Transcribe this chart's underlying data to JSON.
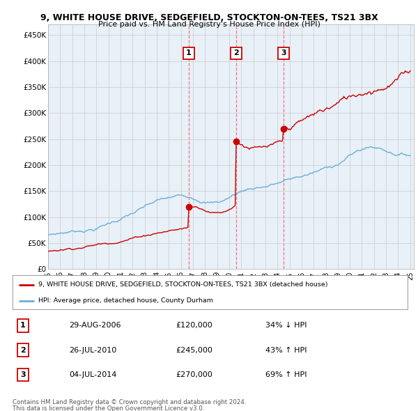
{
  "title1": "9, WHITE HOUSE DRIVE, SEDGEFIELD, STOCKTON-ON-TEES, TS21 3BX",
  "title2": "Price paid vs. HM Land Registry's House Price Index (HPI)",
  "ylabel_ticks": [
    "£0",
    "£50K",
    "£100K",
    "£150K",
    "£200K",
    "£250K",
    "£300K",
    "£350K",
    "£400K",
    "£450K"
  ],
  "ytick_values": [
    0,
    50000,
    100000,
    150000,
    200000,
    250000,
    300000,
    350000,
    400000,
    450000
  ],
  "ylim": [
    0,
    470000
  ],
  "sale_dates": [
    2006.66,
    2010.57,
    2014.5
  ],
  "sale_prices": [
    120000,
    245000,
    270000
  ],
  "sale_labels": [
    "1",
    "2",
    "3"
  ],
  "legend_line1": "9, WHITE HOUSE DRIVE, SEDGEFIELD, STOCKTON-ON-TEES, TS21 3BX (detached house)",
  "legend_line2": "HPI: Average price, detached house, County Durham",
  "table_rows": [
    [
      "1",
      "29-AUG-2006",
      "£120,000",
      "34% ↓ HPI"
    ],
    [
      "2",
      "26-JUL-2010",
      "£245,000",
      "43% ↑ HPI"
    ],
    [
      "3",
      "04-JUL-2014",
      "£270,000",
      "69% ↑ HPI"
    ]
  ],
  "footnote1": "Contains HM Land Registry data © Crown copyright and database right 2024.",
  "footnote2": "This data is licensed under the Open Government Licence v3.0.",
  "hpi_color": "#6baed6",
  "sale_color": "#cc0000",
  "vline_color": "#ff6666",
  "grid_color": "#cccccc",
  "bg_color": "#e8f0f8",
  "background_color": "#ffffff"
}
